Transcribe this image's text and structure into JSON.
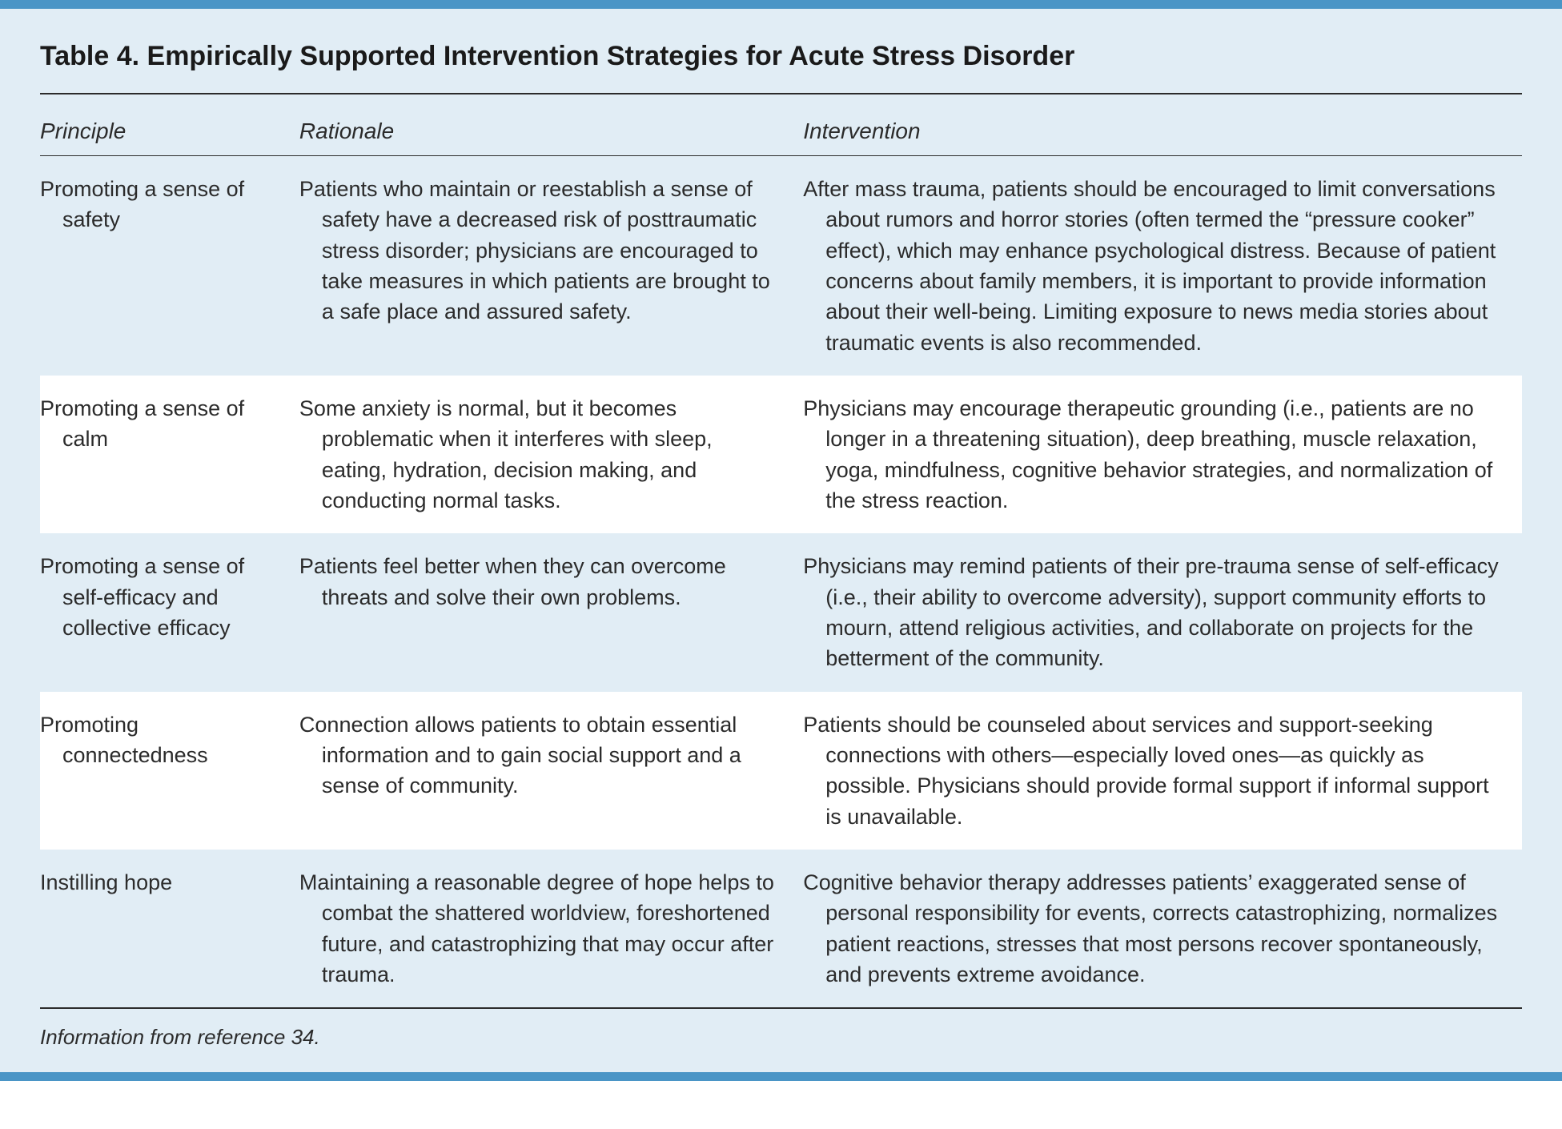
{
  "colors": {
    "frame_border": "#4a95c6",
    "panel_bg": "#e1edf5",
    "row_alt_bg": "#ffffff",
    "text": "#2b2b2b",
    "title": "#1a1a1a",
    "rule": "#2b2b2b"
  },
  "typography": {
    "title_fontsize": 34,
    "header_fontsize": 28,
    "body_fontsize": 27,
    "footnote_fontsize": 26,
    "line_height": 1.42
  },
  "layout": {
    "col_widths_pct": [
      17.5,
      34,
      48.5
    ]
  },
  "table": {
    "title": "Table 4. Empirically Supported Intervention Strategies for Acute Stress Disorder",
    "columns": [
      "Principle",
      "Rationale",
      "Intervention"
    ],
    "rows": [
      {
        "principle": "Promoting a sense of safety",
        "rationale": "Patients who maintain or reestablish a sense of safety have a decreased risk of posttraumatic stress disorder; physicians are encouraged to take measures in which patients are brought to a safe place and assured safety.",
        "intervention": "After mass trauma, patients should be encouraged to limit conversations about rumors and horror stories (often termed the “pressure cooker” effect), which may enhance psychological distress. Because of patient concerns about family members, it is important to provide information about their well-being. Limiting exposure to news media stories about traumatic events is also recommended."
      },
      {
        "principle": "Promoting a sense of calm",
        "rationale": "Some anxiety is normal, but it becomes problematic when it interferes with sleep, eating, hydration, decision making, and conducting normal tasks.",
        "intervention": "Physicians may encourage therapeutic grounding (i.e., patients are no longer in a threatening situation), deep breathing, muscle relaxation, yoga, mindfulness, cognitive behavior strategies, and normalization of the stress reaction."
      },
      {
        "principle": "Promoting a sense of self-efficacy and collective efficacy",
        "rationale": "Patients feel better when they can overcome threats and solve their own problems.",
        "intervention": "Physicians may remind patients of their pre-trauma sense of self-efficacy (i.e., their ability to overcome adversity), support community efforts to mourn, attend religious activities, and collaborate on projects for the betterment of the community."
      },
      {
        "principle": "Promoting connectedness",
        "rationale": "Connection allows patients to obtain essential information and to gain social support and a sense of community.",
        "intervention": "Patients should be counseled about services and support-seeking connections with others—especially loved ones—as quickly as possible. Physicians should provide formal support if informal support is unavailable."
      },
      {
        "principle": "Instilling hope",
        "rationale": "Maintaining a reasonable degree of hope helps to combat the shattered worldview, foreshortened future, and catastrophizing that may occur after trauma.",
        "intervention": "Cognitive behavior therapy addresses patients’ exaggerated sense of personal responsibility for events, corrects catastrophizing, normalizes patient reactions, stresses that most persons recover spontaneously, and prevents extreme avoidance."
      }
    ],
    "footnote": "Information from reference 34."
  }
}
